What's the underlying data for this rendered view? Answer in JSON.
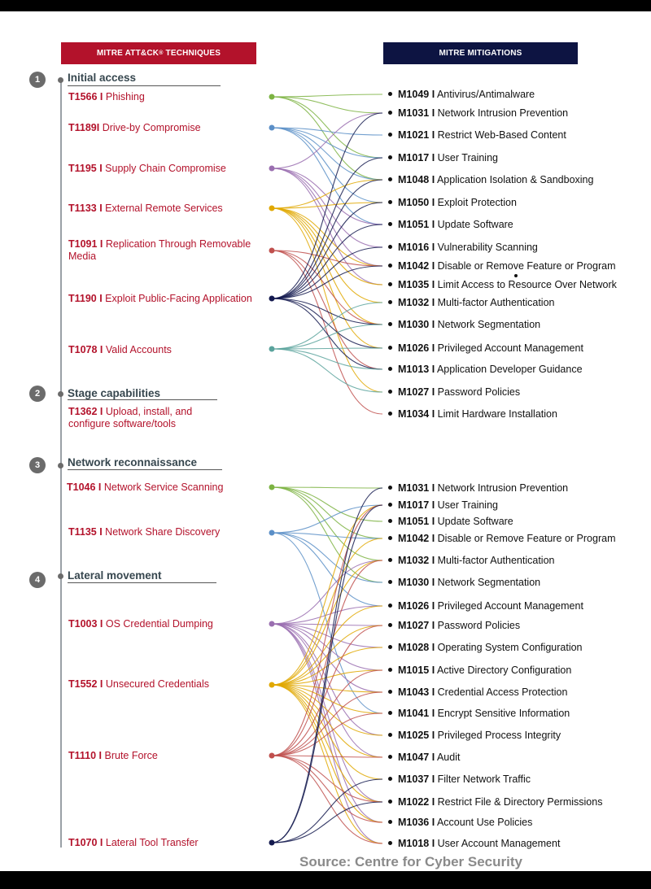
{
  "headers": {
    "left_pre": "MITRE ATT&CK",
    "left_sup": "®",
    "left_post": " TECHNIQUES",
    "right": "MITRE MITIGATIONS"
  },
  "stages": [
    {
      "num": "1",
      "title": "Initial access"
    },
    {
      "num": "2",
      "title": "Stage capabilities"
    },
    {
      "num": "3",
      "title": "Network reconnaissance"
    },
    {
      "num": "4",
      "title": "Lateral movement"
    }
  ],
  "techniques": [
    {
      "id": "T1566 I",
      "name": " Phishing",
      "color": "#7cb342"
    },
    {
      "id": "T1189I",
      "name": " Drive-by Compromise",
      "color": "#5b8fc7"
    },
    {
      "id": "T1195 I",
      "name": " Supply Chain Compromise",
      "color": "#9a6fb0"
    },
    {
      "id": "T1133 I",
      "name": " External Remote Services",
      "color": "#e0a800"
    },
    {
      "id": "T1091 I",
      "name": " Replication Through Removable Media",
      "color": "#c0504d"
    },
    {
      "id": "T1190 I",
      "name": " Exploit Public-Facing Application",
      "color": "#141a4f"
    },
    {
      "id": "T1078 I",
      "name": " Valid Accounts",
      "color": "#5aa39c"
    },
    {
      "id": "T1362 I",
      "name": " Upload, install, and configure software/tools",
      "color": ""
    },
    {
      "id": "T1046 I",
      "name": " Network Service Scanning",
      "color": "#7cb342"
    },
    {
      "id": "T1135 I",
      "name": " Network Share Discovery",
      "color": "#5b8fc7"
    },
    {
      "id": "T1003 I",
      "name": " OS Credential Dumping",
      "color": "#9a6fb0"
    },
    {
      "id": "T1552 I",
      "name": " Unsecured Credentials",
      "color": "#e0a800"
    },
    {
      "id": "T1110 I",
      "name": " Brute Force",
      "color": "#c0504d"
    },
    {
      "id": "T1070 I",
      "name": " Lateral Tool Transfer",
      "color": "#141a4f"
    }
  ],
  "mitigations_a": [
    {
      "id": "M1049 I",
      "name": " Antivirus/Antimalware"
    },
    {
      "id": "M1031 I",
      "name": " Network Intrusion Prevention"
    },
    {
      "id": "M1021 I",
      "name": " Restrict Web-Based Content"
    },
    {
      "id": "M1017 I",
      "name": " User Training"
    },
    {
      "id": "M1048 I",
      "name": " Application Isolation & Sandboxing"
    },
    {
      "id": "M1050 I",
      "name": " Exploit Protection"
    },
    {
      "id": "M1051 I",
      "name": " Update Software"
    },
    {
      "id": "M1016 I",
      "name": " Vulnerability Scanning"
    },
    {
      "id": "M1042 I",
      "name": " Disable or Remove Feature or Program"
    },
    {
      "id": "M1035 I",
      "name": " Limit Access to Resource Over Network"
    },
    {
      "id": "M1032 I",
      "name": " Multi-factor Authentication"
    },
    {
      "id": "M1030 I",
      "name": " Network Segmentation"
    },
    {
      "id": "M1026 I",
      "name": " Privileged Account Management"
    },
    {
      "id": "M1013 I",
      "name": " Application Developer Guidance"
    },
    {
      "id": "M1027 I",
      "name": " Password Policies"
    },
    {
      "id": "M1034 I",
      "name": " Limit Hardware Installation"
    }
  ],
  "mitigations_b": [
    {
      "id": "M1031 I",
      "name": " Network Intrusion Prevention"
    },
    {
      "id": "M1017 I",
      "name": " User Training"
    },
    {
      "id": "M1051 I",
      "name": " Update Software"
    },
    {
      "id": "M1042 I",
      "name": " Disable or Remove Feature or Program"
    },
    {
      "id": "M1032 I",
      "name": " Multi-factor Authentication"
    },
    {
      "id": "M1030 I",
      "name": " Network Segmentation"
    },
    {
      "id": "M1026 I",
      "name": " Privileged Account Management"
    },
    {
      "id": "M1027 I",
      "name": " Password Policies"
    },
    {
      "id": "M1028 I",
      "name": " Operating System Configuration"
    },
    {
      "id": "M1015 I",
      "name": " Active Directory Configuration"
    },
    {
      "id": "M1043 I",
      "name": " Credential Access Protection"
    },
    {
      "id": "M1041 I",
      "name": " Encrypt Sensitive Information"
    },
    {
      "id": "M1025 I",
      "name": " Privileged Process Integrity"
    },
    {
      "id": "M1047 I",
      "name": " Audit"
    },
    {
      "id": "M1037 I",
      "name": " Filter Network Traffic"
    },
    {
      "id": "M1022 I",
      "name": " Restrict File & Directory Permissions"
    },
    {
      "id": "M1036 I",
      "name": " Account Use Policies"
    },
    {
      "id": "M1018 I",
      "name": " User Account Management"
    }
  ],
  "links_a": [
    [
      0,
      [
        0,
        1,
        3,
        4
      ]
    ],
    [
      1,
      [
        2,
        4,
        5,
        6,
        3
      ]
    ],
    [
      2,
      [
        1,
        6,
        7,
        8,
        9
      ]
    ],
    [
      3,
      [
        5,
        8,
        9,
        10,
        11,
        12,
        14,
        4
      ]
    ],
    [
      4,
      [
        8,
        13,
        15,
        11
      ]
    ],
    [
      5,
      [
        4,
        5,
        6,
        7,
        8,
        11,
        12,
        3,
        13,
        1
      ]
    ],
    [
      6,
      [
        10,
        12,
        14,
        11,
        13
      ]
    ]
  ],
  "links_b": [
    [
      8,
      [
        0,
        3,
        4,
        5,
        2
      ]
    ],
    [
      9,
      [
        3,
        5,
        6,
        11,
        1
      ]
    ],
    [
      10,
      [
        4,
        6,
        7,
        8,
        9,
        10,
        12,
        13,
        15,
        17,
        16
      ]
    ],
    [
      11,
      [
        1,
        4,
        6,
        7,
        8,
        9,
        10,
        11,
        12,
        13,
        14,
        15,
        16,
        17,
        3
      ]
    ],
    [
      12,
      [
        1,
        4,
        7,
        9,
        10,
        13,
        15,
        16,
        17,
        11
      ]
    ],
    [
      13,
      [
        0,
        1,
        14,
        15
      ]
    ]
  ],
  "source": "Source: Centre for Cyber Security"
}
